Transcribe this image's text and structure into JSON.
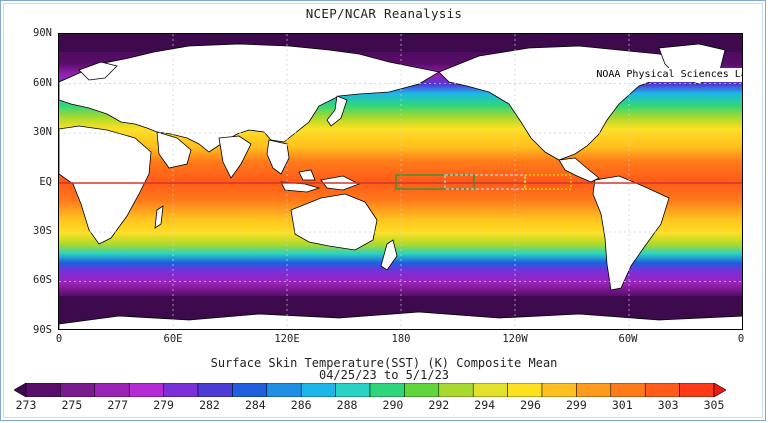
{
  "title": "NCEP/NCAR Reanalysis",
  "credit": "NOAA Physical Sciences Laboratory",
  "subtitle": "Surface Skin Temperature(SST) (K) Composite Mean",
  "date_range": "04/25/23  to 5/1/23",
  "lat_labels": [
    "90N",
    "60N",
    "30N",
    "EQ",
    "30S",
    "60S",
    "90S"
  ],
  "lon_labels": [
    "0",
    "60E",
    "120E",
    "180",
    "120W",
    "60W",
    "0"
  ],
  "colorbar": {
    "labels": [
      "273",
      "275",
      "277",
      "279",
      "282",
      "284",
      "286",
      "288",
      "290",
      "292",
      "294",
      "296",
      "299",
      "301",
      "303",
      "305"
    ],
    "colors": [
      "#3d0a4d",
      "#5a0d6b",
      "#7a1a8f",
      "#9a23b5",
      "#b42bd6",
      "#7b2fd9",
      "#4d3bd6",
      "#1f5fe0",
      "#1f8fe6",
      "#1cb7e8",
      "#29d3c4",
      "#2ed67a",
      "#5fd63a",
      "#a7d92f",
      "#e3e22a",
      "#ffe020",
      "#ffbf1f",
      "#ff9a1c",
      "#ff7a1a",
      "#ff5a18",
      "#ff3a16",
      "#f01a14"
    ]
  },
  "regions": {
    "box_green": "dotted-green box near 180",
    "box_gray": "dotted-gray box 160W-120W",
    "box_yellow": "dotted-yellow box 120W-90W"
  }
}
